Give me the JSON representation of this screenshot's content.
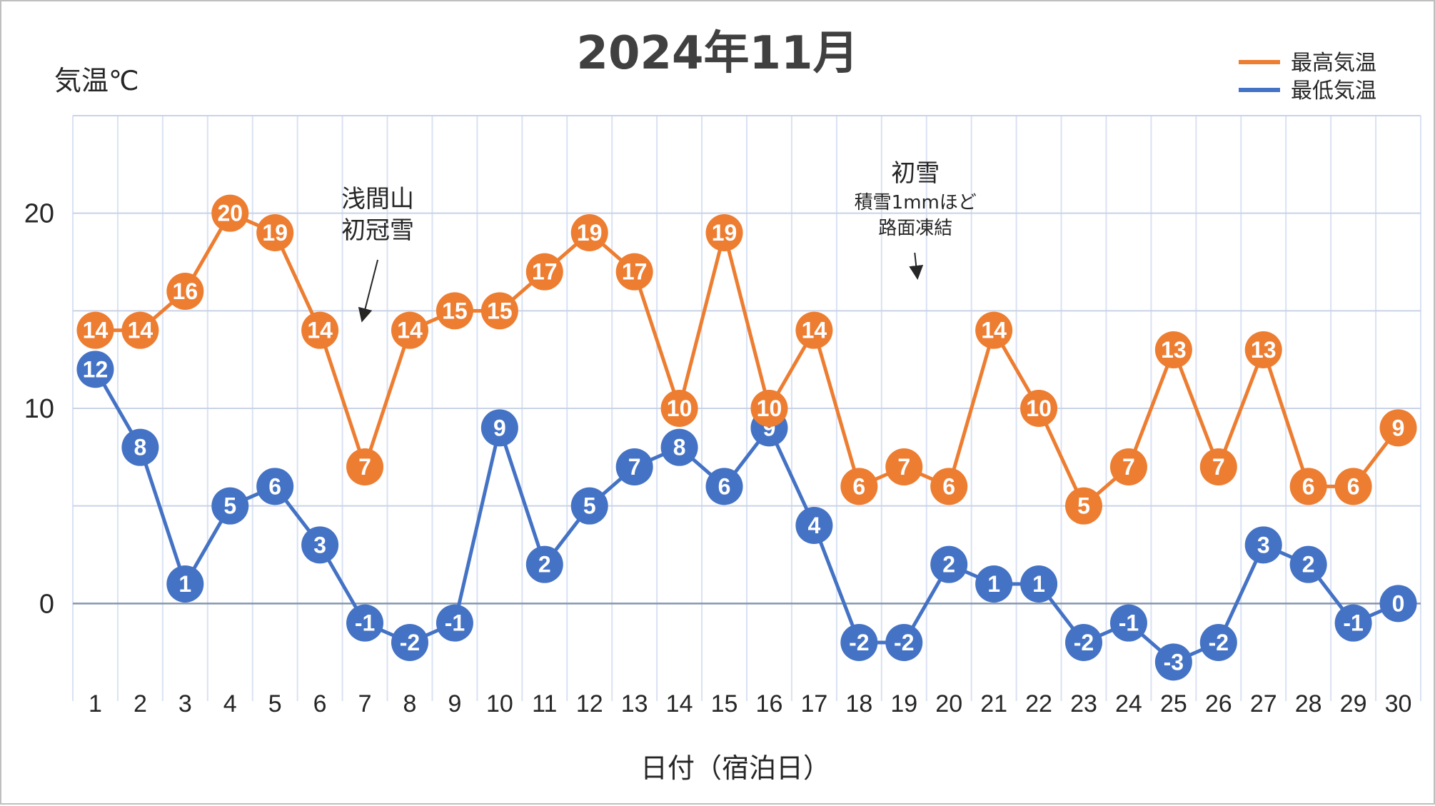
{
  "chart_data": {
    "type": "line",
    "title": "2024年11月",
    "xlabel": "日付（宿泊日）",
    "ylabel": "気温℃",
    "categories": [
      "1",
      "2",
      "3",
      "4",
      "5",
      "6",
      "7",
      "8",
      "9",
      "10",
      "11",
      "12",
      "13",
      "14",
      "15",
      "16",
      "17",
      "18",
      "19",
      "20",
      "21",
      "22",
      "23",
      "24",
      "25",
      "26",
      "27",
      "28",
      "29",
      "30"
    ],
    "ylim": [
      -5,
      25
    ],
    "yticks": [
      0,
      10,
      20
    ],
    "grid": true,
    "legend_position": "top-right",
    "series": [
      {
        "name": "最高気温",
        "color": "#ed7d31",
        "values": [
          14,
          14,
          16,
          20,
          19,
          14,
          7,
          14,
          15,
          15,
          17,
          19,
          17,
          10,
          19,
          10,
          14,
          6,
          7,
          6,
          14,
          10,
          5,
          7,
          13,
          7,
          13,
          6,
          6,
          9
        ]
      },
      {
        "name": "最低気温",
        "color": "#4472c4",
        "values": [
          12,
          8,
          1,
          5,
          6,
          3,
          -1,
          -2,
          -1,
          9,
          2,
          5,
          7,
          8,
          6,
          9,
          4,
          -2,
          -2,
          2,
          1,
          1,
          -2,
          -1,
          -3,
          -2,
          3,
          2,
          -1,
          0
        ]
      }
    ],
    "annotations": [
      {
        "day": 7,
        "lines": [
          "浅間山",
          "初冠雪"
        ]
      },
      {
        "day": 19,
        "lines": [
          "初雪",
          "積雪1mmほど",
          "路面凍結"
        ]
      }
    ]
  }
}
